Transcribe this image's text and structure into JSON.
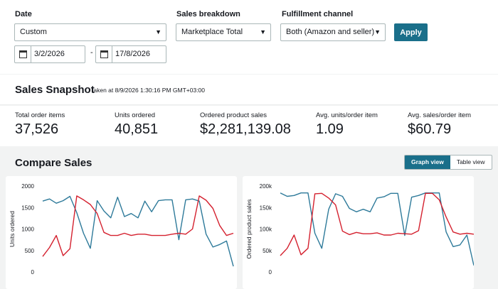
{
  "filters": {
    "date_label": "Date",
    "date_range": "Custom",
    "start_date": "3/2/2026",
    "end_date": "17/8/2026",
    "date_separator": "-",
    "breakdown_label": "Sales breakdown",
    "breakdown_value": "Marketplace Total",
    "channel_label": "Fulfillment channel",
    "channel_value": "Both (Amazon and seller)",
    "apply_label": "Apply"
  },
  "snapshot": {
    "title": "Sales Snapshot",
    "taken_at": "taken at 8/9/2026 1:30:16 PM GMT+03:00",
    "metrics": [
      {
        "label": "Total order items",
        "value": "37,526"
      },
      {
        "label": "Units ordered",
        "value": "40,851"
      },
      {
        "label": "Ordered product sales",
        "value": "$2,281,139.08"
      },
      {
        "label": "Avg. units/order item",
        "value": "1.09"
      },
      {
        "label": "Avg. sales/order item",
        "value": "$60.79"
      }
    ]
  },
  "compare": {
    "title": "Compare Sales",
    "graph_view_label": "Graph view",
    "table_view_label": "Table view"
  },
  "colors": {
    "accent": "#1a6f8a",
    "series_blue": "#2e7a9a",
    "series_red": "#d4202e"
  },
  "chart_data": [
    {
      "type": "line",
      "ylabel": "Units ordered",
      "ylim": [
        0,
        2000
      ],
      "yticks": [
        "2000",
        "1500",
        "1000",
        "500",
        "0"
      ],
      "grid": false,
      "series": [
        {
          "color": "#2e7a9a",
          "values": [
            1650,
            1700,
            1600,
            1660,
            1760,
            1380,
            900,
            550,
            1660,
            1420,
            1260,
            1740,
            1290,
            1360,
            1260,
            1650,
            1400,
            1660,
            1680,
            1680,
            750,
            1680,
            1700,
            1650,
            880,
            580,
            640,
            720,
            130
          ]
        },
        {
          "color": "#d4202e",
          "values": [
            360,
            570,
            850,
            380,
            540,
            1770,
            1680,
            1570,
            1360,
            920,
            850,
            850,
            900,
            850,
            880,
            880,
            850,
            850,
            850,
            880,
            900,
            880,
            1000,
            1770,
            1670,
            1480,
            1080,
            850,
            900
          ]
        }
      ]
    },
    {
      "type": "line",
      "ylabel": "Ordered product sales",
      "ylim": [
        0,
        200000
      ],
      "yticks": [
        "200k",
        "150k",
        "100k",
        "50k",
        "0"
      ],
      "grid": false,
      "series": [
        {
          "color": "#2e7a9a",
          "values": [
            184000,
            176000,
            178000,
            184000,
            184000,
            90000,
            55000,
            146000,
            182000,
            176000,
            148000,
            140000,
            146000,
            140000,
            172000,
            175000,
            183000,
            183000,
            85000,
            174000,
            178000,
            184000,
            184000,
            184000,
            93000,
            59000,
            63000,
            86000,
            15000
          ]
        },
        {
          "color": "#d4202e",
          "values": [
            38000,
            55000,
            86000,
            40000,
            55000,
            182000,
            183000,
            172000,
            156000,
            95000,
            87000,
            92000,
            89000,
            89000,
            91000,
            86000,
            86000,
            90000,
            89000,
            88000,
            96000,
            183000,
            183000,
            168000,
            128000,
            93000,
            88000,
            90000,
            88000
          ]
        }
      ]
    }
  ]
}
